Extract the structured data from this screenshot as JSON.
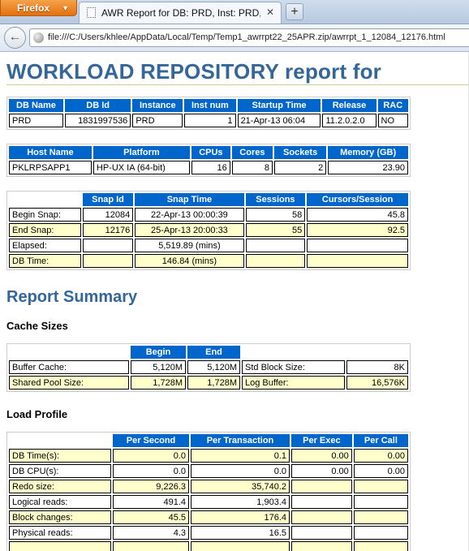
{
  "browser": {
    "menu_label": "Firefox",
    "tab_title": "AWR Report for DB: PRD, Inst: PRD, Snap...",
    "new_tab_label": "+",
    "url": "file:///C:/Users/khlee/AppData/Local/Temp/Temp1_awrrpt22_25APR.zip/awrrpt_1_12084_12176.html"
  },
  "report": {
    "title": "WORKLOAD REPOSITORY report for",
    "db_info": {
      "headers": [
        "DB Name",
        "DB Id",
        "Instance",
        "Inst num",
        "Startup Time",
        "Release",
        "RAC"
      ],
      "row": [
        "PRD",
        "1831997536",
        "PRD",
        "1",
        "21-Apr-13 06:04",
        "11.2.0.2.0",
        "NO"
      ]
    },
    "host_info": {
      "headers": [
        "Host Name",
        "Platform",
        "CPUs",
        "Cores",
        "Sockets",
        "Memory (GB)"
      ],
      "row": [
        "PKLRPSAPP1",
        "HP-UX IA (64-bit)",
        "16",
        "8",
        "2",
        "23.90"
      ]
    },
    "snap_info": {
      "headers": [
        "",
        "Snap Id",
        "Snap Time",
        "Sessions",
        "Cursors/Session"
      ],
      "rows": [
        [
          "Begin Snap:",
          "12084",
          "22-Apr-13 00:00:39",
          "58",
          "45.8"
        ],
        [
          "End Snap:",
          "12176",
          "25-Apr-13 20:00:33",
          "55",
          "92.5"
        ],
        [
          "Elapsed:",
          "",
          "5,519.89 (mins)",
          "",
          ""
        ],
        [
          "DB Time:",
          "",
          "146.84 (mins)",
          "",
          ""
        ]
      ]
    },
    "summary_heading": "Report Summary",
    "cache_sizes": {
      "heading": "Cache Sizes",
      "headers": [
        "",
        "Begin",
        "End",
        "",
        ""
      ],
      "rows": [
        [
          "Buffer Cache:",
          "5,120M",
          "5,120M",
          "Std Block Size:",
          "8K"
        ],
        [
          "Shared Pool Size:",
          "1,728M",
          "1,728M",
          "Log Buffer:",
          "16,576K"
        ]
      ]
    },
    "load_profile": {
      "heading": "Load Profile",
      "headers": [
        "",
        "Per Second",
        "Per Transaction",
        "Per Exec",
        "Per Call"
      ],
      "rows": [
        [
          "DB Time(s):",
          "0.0",
          "0.1",
          "0.00",
          "0.00"
        ],
        [
          "DB CPU(s):",
          "0.0",
          "0.0",
          "0.00",
          "0.00"
        ],
        [
          "Redo size:",
          "9,226.3",
          "35,740.2",
          "",
          ""
        ],
        [
          "Logical reads:",
          "491.4",
          "1,903.4",
          "",
          ""
        ],
        [
          "Block changes:",
          "45.5",
          "176.4",
          "",
          ""
        ],
        [
          "Physical reads:",
          "4.3",
          "16.5",
          "",
          ""
        ],
        [
          "",
          "",
          "",
          "",
          ""
        ]
      ]
    }
  }
}
